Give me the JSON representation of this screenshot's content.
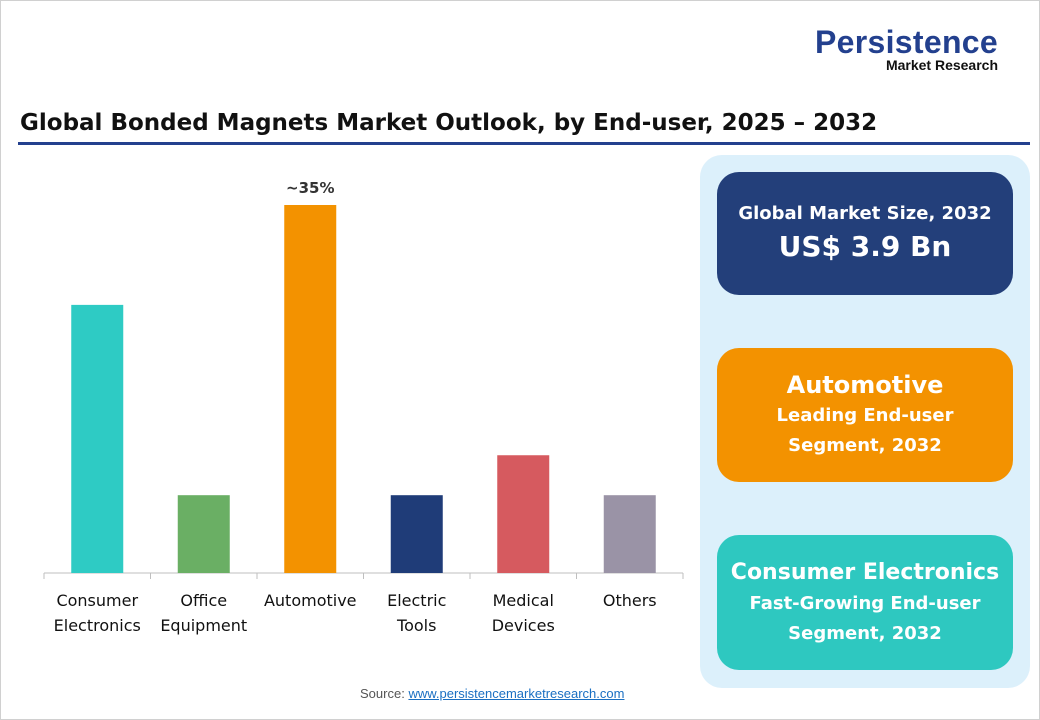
{
  "title": "Global Bonded Magnets Market Outlook, by End-user, 2025 – 2032",
  "logo": {
    "line1": "Persistence",
    "line2": "Market Research"
  },
  "chart_data": {
    "type": "bar",
    "title": "Global Bonded Magnets Market Outlook, by End-user, 2025 – 2032",
    "categories": [
      [
        "Consumer",
        "Electronics"
      ],
      [
        "Office",
        "Equipment"
      ],
      [
        "Automotive"
      ],
      [
        "Electric",
        "Tools"
      ],
      [
        "Medical",
        "Devices"
      ],
      [
        "Others"
      ]
    ],
    "values": [
      25.5,
      7.4,
      35,
      7.4,
      11.2,
      7.4
    ],
    "data_labels": [
      "",
      "",
      "~35%",
      "",
      "",
      ""
    ],
    "colors": [
      "#2ecbc4",
      "#6aaf64",
      "#f39200",
      "#1f3c78",
      "#d65a5f",
      "#9a93a6"
    ],
    "unit": "%",
    "ylim": [
      0,
      35
    ],
    "grid": false,
    "y_axis_visible": false
  },
  "panel": {
    "market_size": {
      "label": "Global Market Size, 2032",
      "value": "US$ 3.9 Bn"
    },
    "leading": {
      "name": "Automotive",
      "line1": "Leading End-user",
      "line2": "Segment, 2032"
    },
    "fastest": {
      "name": "Consumer Electronics",
      "line1": "Fast-Growing End-user",
      "line2": "Segment, 2032"
    }
  },
  "source": {
    "label": "Source:",
    "link": "www.persistencemarketresearch.com"
  }
}
